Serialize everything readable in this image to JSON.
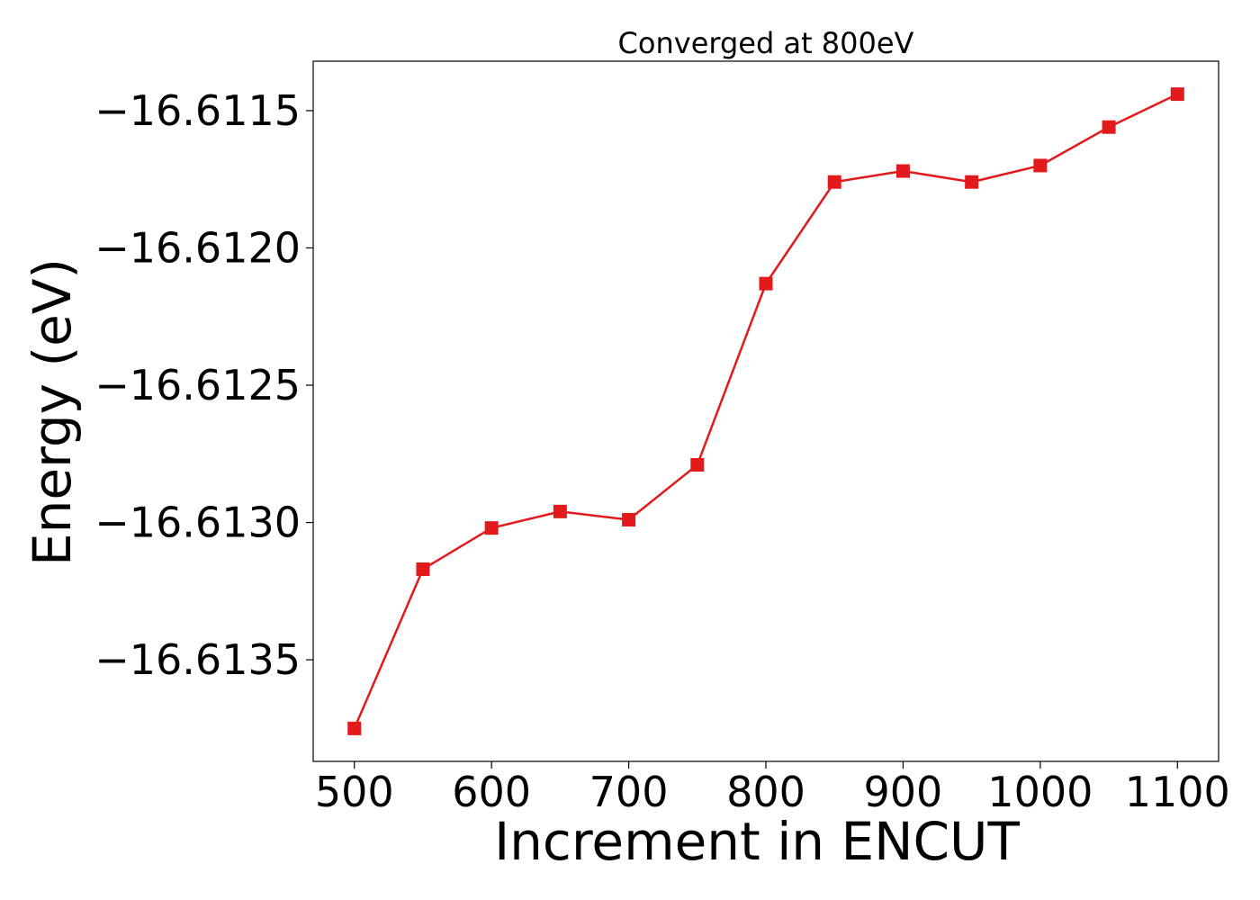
{
  "chart_data": {
    "type": "line",
    "title": "Converged at 800eV",
    "xlabel": "Increment in ENCUT",
    "ylabel": "Energy (eV)",
    "x": [
      500,
      550,
      600,
      650,
      700,
      750,
      800,
      850,
      900,
      950,
      1000,
      1050,
      1100
    ],
    "series": [
      {
        "color": "#e31a1c",
        "marker": "square",
        "values": [
          -16.61375,
          -16.61317,
          -16.61302,
          -16.61296,
          -16.61299,
          -16.61279,
          -16.61213,
          -16.61176,
          -16.61172,
          -16.61176,
          -16.6117,
          -16.61156,
          -16.61144
        ]
      }
    ],
    "xticks": [
      500,
      600,
      700,
      800,
      900,
      1000,
      1100
    ],
    "xtick_labels": [
      "500",
      "600",
      "700",
      "800",
      "900",
      "1000",
      "1100"
    ],
    "yticks": [
      -16.6135,
      -16.613,
      -16.6125,
      -16.612,
      -16.6115
    ],
    "ytick_labels": [
      "−16.6135",
      "−16.6130",
      "−16.6125",
      "−16.6120",
      "−16.6115"
    ],
    "xlim": [
      470,
      1130
    ],
    "ylim": [
      -16.61387,
      -16.61132
    ],
    "grid": false,
    "legend": "none"
  }
}
